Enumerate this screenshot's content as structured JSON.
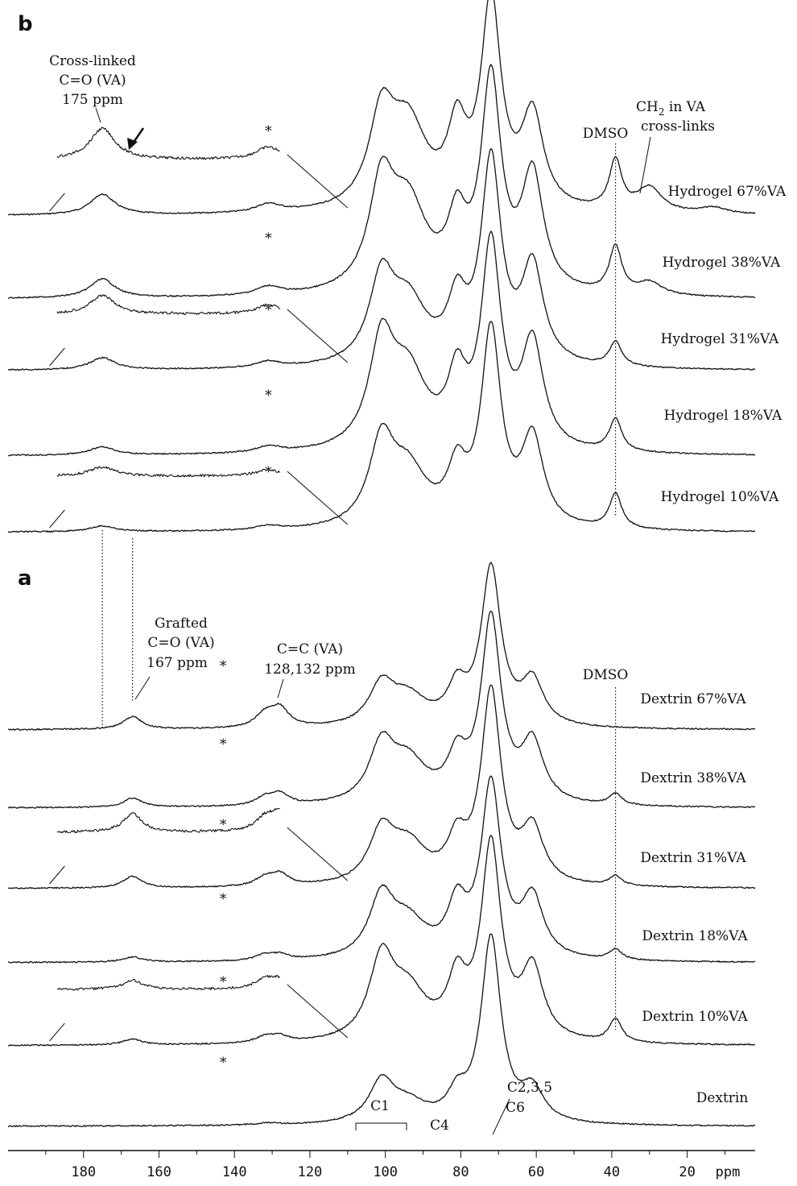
{
  "chart_data": {
    "type": "line",
    "x_unit": "ppm",
    "xlim": [
      200,
      2
    ],
    "x_reversed": true,
    "x_ticks": [
      180,
      160,
      140,
      120,
      100,
      80,
      60,
      40,
      20
    ],
    "panels": [
      {
        "label": "b",
        "series": [
          {
            "name": "Hydrogel 67%VA",
            "inset": true,
            "peaks": [
              [
                175,
                0.1
              ],
              [
                131,
                0.04
              ],
              [
                101,
                0.42
              ],
              [
                94,
                0.4
              ],
              [
                81,
                0.35
              ],
              [
                72,
                1.0
              ],
              [
                61,
                0.45
              ],
              [
                39,
                0.24
              ],
              [
                30,
                0.12
              ],
              [
                13,
                0.03
              ]
            ]
          },
          {
            "name": "Hydrogel 38%VA",
            "inset": false,
            "peaks": [
              [
                175,
                0.09
              ],
              [
                131,
                0.04
              ],
              [
                101,
                0.48
              ],
              [
                94,
                0.4
              ],
              [
                81,
                0.3
              ],
              [
                72,
                1.0
              ],
              [
                61,
                0.55
              ],
              [
                39,
                0.22
              ],
              [
                30,
                0.06
              ]
            ]
          },
          {
            "name": "Hydrogel 31%VA",
            "inset": true,
            "peaks": [
              [
                175,
                0.06
              ],
              [
                131,
                0.03
              ],
              [
                101,
                0.4
              ],
              [
                94,
                0.3
              ],
              [
                81,
                0.28
              ],
              [
                72,
                1.0
              ],
              [
                61,
                0.48
              ],
              [
                39,
                0.12
              ]
            ]
          },
          {
            "name": "Hydrogel 18%VA",
            "inset": false,
            "peaks": [
              [
                175,
                0.04
              ],
              [
                131,
                0.03
              ],
              [
                101,
                0.5
              ],
              [
                94,
                0.36
              ],
              [
                81,
                0.32
              ],
              [
                72,
                1.0
              ],
              [
                61,
                0.52
              ],
              [
                39,
                0.16
              ]
            ]
          },
          {
            "name": "Hydrogel 10%VA",
            "inset": true,
            "peaks": [
              [
                175,
                0.03
              ],
              [
                131,
                0.02
              ],
              [
                101,
                0.42
              ],
              [
                94,
                0.28
              ],
              [
                81,
                0.26
              ],
              [
                72,
                1.0
              ],
              [
                61,
                0.45
              ],
              [
                39,
                0.18
              ]
            ]
          }
        ]
      },
      {
        "label": "a",
        "series": [
          {
            "name": "Dextrin 67%VA",
            "inset": false,
            "peaks": [
              [
                167,
                0.08
              ],
              [
                132,
                0.08
              ],
              [
                128,
                0.12
              ],
              [
                101,
                0.25
              ],
              [
                94,
                0.18
              ],
              [
                81,
                0.22
              ],
              [
                72,
                1.0
              ],
              [
                61,
                0.28
              ]
            ]
          },
          {
            "name": "Dextrin 38%VA",
            "inset": false,
            "peaks": [
              [
                167,
                0.05
              ],
              [
                132,
                0.04
              ],
              [
                128,
                0.06
              ],
              [
                101,
                0.3
              ],
              [
                94,
                0.22
              ],
              [
                81,
                0.22
              ],
              [
                72,
                1.0
              ],
              [
                61,
                0.32
              ],
              [
                39,
                0.06
              ]
            ]
          },
          {
            "name": "Dextrin 31%VA",
            "inset": true,
            "peaks": [
              [
                167,
                0.06
              ],
              [
                132,
                0.04
              ],
              [
                128,
                0.06
              ],
              [
                101,
                0.26
              ],
              [
                94,
                0.2
              ],
              [
                81,
                0.2
              ],
              [
                72,
                1.0
              ],
              [
                61,
                0.28
              ],
              [
                39,
                0.05
              ]
            ]
          },
          {
            "name": "Dextrin 18%VA",
            "inset": false,
            "peaks": [
              [
                167,
                0.03
              ],
              [
                132,
                0.03
              ],
              [
                128,
                0.03
              ],
              [
                101,
                0.34
              ],
              [
                94,
                0.2
              ],
              [
                81,
                0.28
              ],
              [
                72,
                1.0
              ],
              [
                61,
                0.34
              ],
              [
                39,
                0.06
              ]
            ]
          },
          {
            "name": "Dextrin 10%VA",
            "inset": true,
            "peaks": [
              [
                167,
                0.03
              ],
              [
                132,
                0.03
              ],
              [
                128,
                0.03
              ],
              [
                101,
                0.4
              ],
              [
                94,
                0.24
              ],
              [
                81,
                0.28
              ],
              [
                72,
                1.0
              ],
              [
                61,
                0.36
              ],
              [
                39,
                0.12
              ]
            ]
          },
          {
            "name": "Dextrin",
            "inset": false,
            "peaks": [
              [
                131,
                0.01
              ],
              [
                101,
                0.22
              ],
              [
                94,
                0.1
              ],
              [
                81,
                0.13
              ],
              [
                72,
                1.0
              ],
              [
                61,
                0.17
              ]
            ]
          }
        ]
      }
    ],
    "annotations": {
      "panel_b": {
        "crosslinked": [
          "Cross-linked",
          "C=O (VA)",
          "175 ppm"
        ],
        "dmso": "DMSO",
        "ch2_line1": "CH",
        "ch2_sub": "2",
        "ch2_line1_rest": " in VA",
        "ch2_line2": "cross-links"
      },
      "panel_a": {
        "grafted": [
          "Grafted",
          "C=O (VA)",
          "167 ppm"
        ],
        "cc": [
          "C=C (VA)",
          "128,132 ppm"
        ],
        "dmso": "DMSO",
        "c1": "C1",
        "c4": "C4",
        "c235": "C2,3,5",
        "c6": "C6"
      },
      "star": "*"
    }
  }
}
